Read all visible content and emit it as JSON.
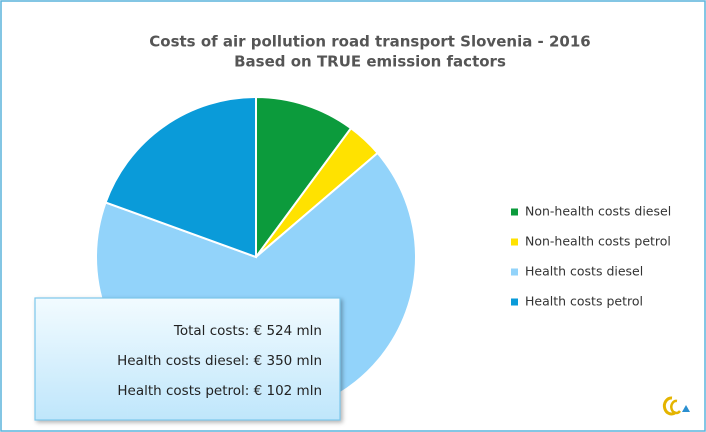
{
  "chart_data": {
    "type": "pie",
    "title": "Costs of air pollution road transport Slovenia - 2016",
    "subtitle": "Based on TRUE emission factors",
    "categories": [
      "Non-health costs diesel",
      "Non-health costs petrol",
      "Health costs diesel",
      "Health costs petrol"
    ],
    "values": [
      53,
      19,
      350,
      102
    ],
    "colors": [
      "#0c9b3c",
      "#ffe200",
      "#92d3fa",
      "#0a9bd9"
    ],
    "legend": "right",
    "annotations": [
      "Total costs: € 524 mln",
      "Health costs diesel: € 350 mln",
      "Health costs petrol: € 102 mln"
    ]
  }
}
